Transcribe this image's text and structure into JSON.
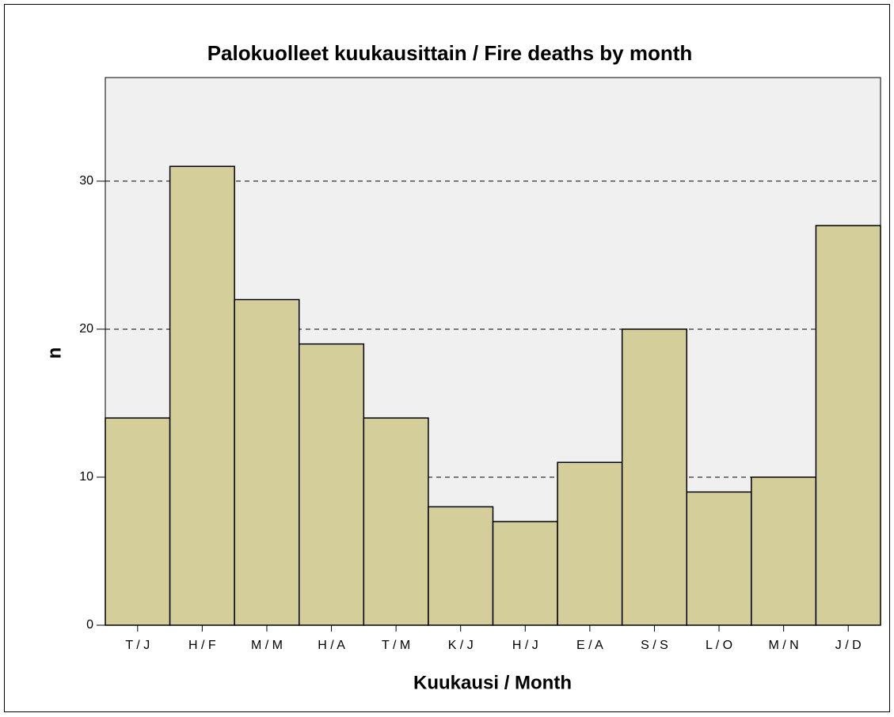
{
  "chart_data": {
    "type": "bar",
    "title": "Palokuolleet kuukausittain / Fire deaths by month",
    "x_label": "Kuukausi / Month",
    "y_label": "n",
    "categories": [
      "T / J",
      "H / F",
      "M / M",
      "H / A",
      "T / M",
      "K / J",
      "H / J",
      "E / A",
      "S / S",
      "L / O",
      "M / N",
      "J / D"
    ],
    "values": [
      14,
      31,
      22,
      19,
      14,
      8,
      7,
      11,
      20,
      9,
      10,
      27
    ],
    "color": "#d3ce9a",
    "ylim": [
      0,
      37
    ],
    "yticks": [
      0,
      10,
      20,
      30
    ],
    "grid": true
  }
}
